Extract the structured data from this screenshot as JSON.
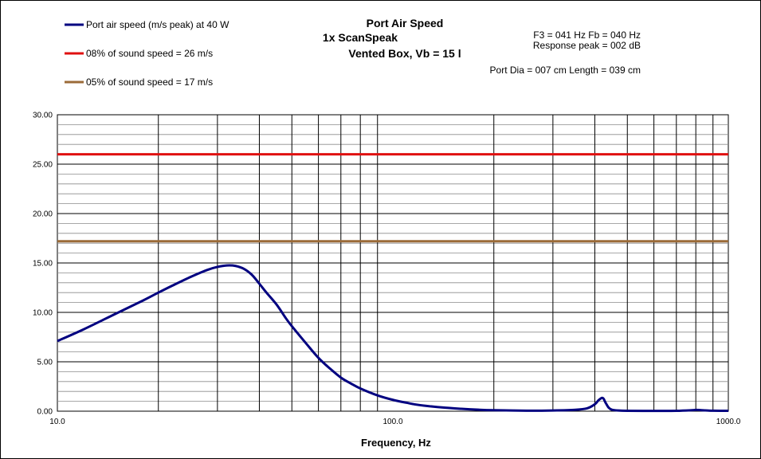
{
  "chart_data": {
    "type": "line",
    "title_lines": [
      "Port Air Speed",
      "1x ScanSpeak",
      "Vented Box, Vb = 15 l"
    ],
    "info_lines": [
      "F3 = 041 Hz  Fb = 040 Hz",
      "Response  peak = 002 dB",
      "Port Dia = 007 cm  Length  = 039 cm"
    ],
    "xlabel": "Frequency, Hz",
    "ylabel": "",
    "x_scale": "log",
    "xlim": [
      10,
      1000
    ],
    "ylim": [
      0,
      30
    ],
    "x_ticks": [
      "10.0",
      "100.0",
      "1000.0"
    ],
    "y_ticks": [
      "0.00",
      "5.00",
      "10.00",
      "15.00",
      "20.00",
      "25.00",
      "30.00"
    ],
    "grid": true,
    "legend_position": "top-left",
    "series": [
      {
        "name": "Port air speed (m/s peak) at 40 W",
        "color": "#000080",
        "x": [
          10,
          12,
          15,
          18,
          20,
          22,
          25,
          28,
          30,
          32,
          34,
          36,
          38,
          40,
          42,
          45,
          48,
          50,
          55,
          60,
          65,
          70,
          75,
          80,
          90,
          100,
          110,
          120,
          140,
          160,
          180,
          200,
          250,
          300,
          350,
          380,
          400,
          410,
          420,
          425,
          430,
          440,
          450,
          470,
          500,
          600,
          700,
          780,
          800,
          820,
          850,
          900,
          1000
        ],
        "y": [
          7.1,
          8.3,
          9.9,
          11.2,
          12.0,
          12.7,
          13.6,
          14.3,
          14.6,
          14.75,
          14.7,
          14.4,
          13.8,
          12.9,
          12.0,
          10.8,
          9.4,
          8.6,
          6.9,
          5.4,
          4.3,
          3.4,
          2.8,
          2.3,
          1.6,
          1.15,
          0.85,
          0.62,
          0.38,
          0.24,
          0.15,
          0.1,
          0.05,
          0.07,
          0.14,
          0.3,
          0.7,
          1.1,
          1.35,
          1.25,
          0.9,
          0.35,
          0.15,
          0.07,
          0.04,
          0.03,
          0.04,
          0.1,
          0.13,
          0.12,
          0.08,
          0.05,
          0.04
        ]
      },
      {
        "name": "08% of sound speed = 26 m/s",
        "color": "#e01010",
        "x": [
          10,
          1000
        ],
        "y": [
          26,
          26
        ]
      },
      {
        "name": "05% of sound speed = 17 m/s",
        "color": "#9b6b38",
        "x": [
          10,
          1000
        ],
        "y": [
          17.2,
          17.2
        ]
      }
    ]
  }
}
